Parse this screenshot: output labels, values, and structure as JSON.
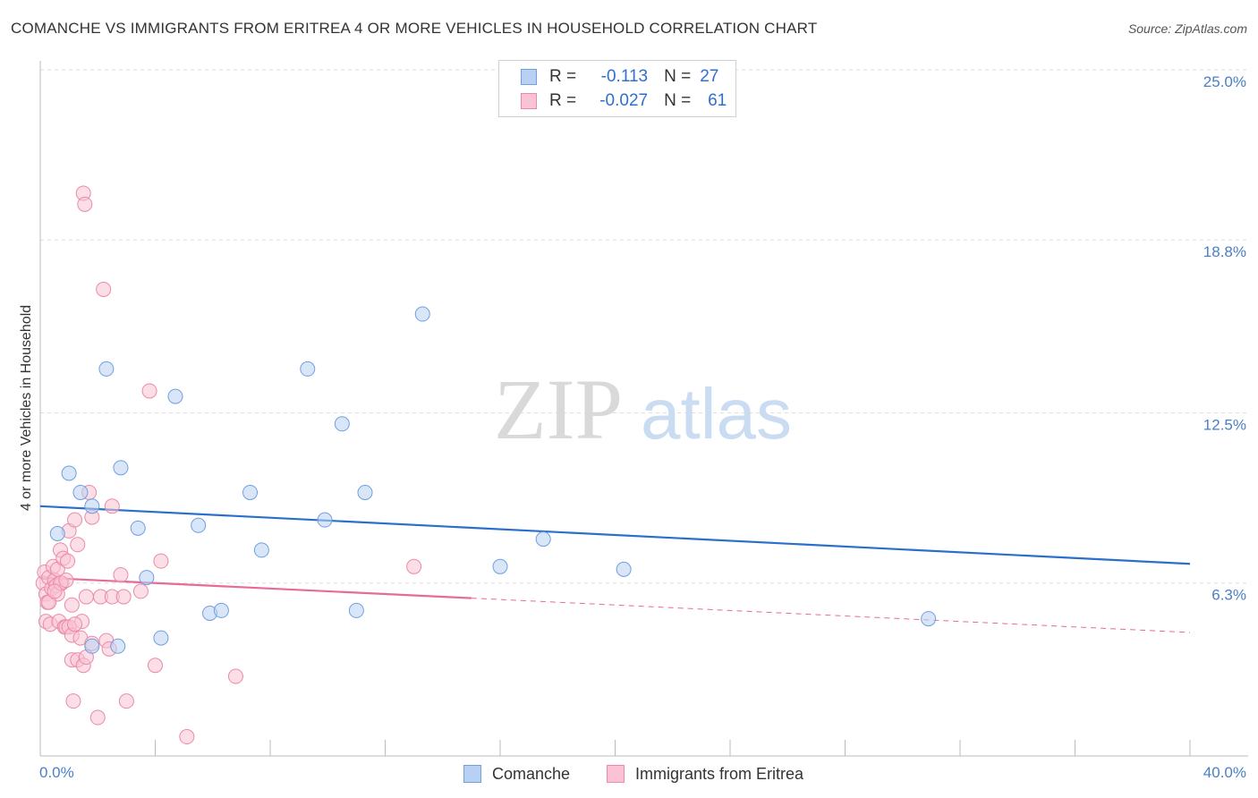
{
  "title": "COMANCHE VS IMMIGRANTS FROM ERITREA 4 OR MORE VEHICLES IN HOUSEHOLD CORRELATION CHART",
  "source": "Source: ZipAtlas.com",
  "watermark": {
    "zip": "ZIP",
    "atlas": "atlas"
  },
  "legend": {
    "rows": [
      {
        "r_label": "R =",
        "r_value": "-0.113",
        "n_label": "N =",
        "n_value": "27"
      },
      {
        "r_label": "R =",
        "r_value": "-0.027",
        "n_label": "N =",
        "n_value": "61"
      }
    ]
  },
  "bottom_legend": {
    "comanche": "Comanche",
    "eritrea": "Immigrants from Eritrea"
  },
  "colors": {
    "comanche_fill": "#b8d1f3",
    "comanche_stroke": "#6e9fe0",
    "comanche_line": "#2a6fca",
    "eritrea_fill": "#f9c3d4",
    "eritrea_stroke": "#ea8aa8",
    "eritrea_line": "#e8699a",
    "tick_text": "#4a7fc8",
    "grid": "#dddddd"
  },
  "chart_data": {
    "type": "scatter",
    "title": "COMANCHE VS IMMIGRANTS FROM ERITREA 4 OR MORE VEHICLES IN HOUSEHOLD CORRELATION CHART",
    "xlabel": "",
    "ylabel": "4 or more Vehicles in Household",
    "xlim": [
      0,
      40
    ],
    "ylim": [
      0,
      25
    ],
    "x_tick_labels": [
      "0.0%",
      "40.0%"
    ],
    "y_ticks": [
      6.3,
      12.5,
      18.8,
      25.0
    ],
    "y_tick_labels": [
      "6.3%",
      "12.5%",
      "18.8%",
      "25.0%"
    ],
    "grid": true,
    "legend_position": "top-center",
    "series": [
      {
        "name": "Comanche",
        "R": -0.113,
        "N": 27,
        "trend": {
          "x": [
            0.0,
            40.0
          ],
          "y": [
            9.1,
            7.0
          ]
        },
        "points": [
          {
            "x": 0.6,
            "y": 8.1
          },
          {
            "x": 1.0,
            "y": 10.3
          },
          {
            "x": 1.4,
            "y": 9.6
          },
          {
            "x": 1.8,
            "y": 9.1
          },
          {
            "x": 2.3,
            "y": 14.1
          },
          {
            "x": 2.8,
            "y": 10.5
          },
          {
            "x": 3.4,
            "y": 8.3
          },
          {
            "x": 3.7,
            "y": 6.5
          },
          {
            "x": 4.2,
            "y": 4.3
          },
          {
            "x": 4.7,
            "y": 13.1
          },
          {
            "x": 5.5,
            "y": 8.4
          },
          {
            "x": 5.9,
            "y": 5.2
          },
          {
            "x": 6.3,
            "y": 5.3
          },
          {
            "x": 7.3,
            "y": 9.6
          },
          {
            "x": 7.7,
            "y": 7.5
          },
          {
            "x": 9.3,
            "y": 14.1
          },
          {
            "x": 9.9,
            "y": 8.6
          },
          {
            "x": 10.5,
            "y": 12.1
          },
          {
            "x": 11.0,
            "y": 5.3
          },
          {
            "x": 11.3,
            "y": 9.6
          },
          {
            "x": 13.3,
            "y": 16.1
          },
          {
            "x": 16.0,
            "y": 6.9
          },
          {
            "x": 17.5,
            "y": 7.9
          },
          {
            "x": 20.3,
            "y": 6.8
          },
          {
            "x": 30.9,
            "y": 5.0
          },
          {
            "x": 2.7,
            "y": 4.0
          },
          {
            "x": 1.8,
            "y": 4.0
          }
        ]
      },
      {
        "name": "Immigrants from Eritrea",
        "R": -0.027,
        "N": 61,
        "trend": {
          "x": [
            0.0,
            40.0
          ],
          "y": [
            6.5,
            4.5
          ],
          "solid_until": 15.0
        },
        "points": [
          {
            "x": 0.1,
            "y": 6.3
          },
          {
            "x": 0.15,
            "y": 6.7
          },
          {
            "x": 0.2,
            "y": 5.9
          },
          {
            "x": 0.2,
            "y": 4.9
          },
          {
            "x": 0.25,
            "y": 5.6
          },
          {
            "x": 0.3,
            "y": 6.5
          },
          {
            "x": 0.35,
            "y": 4.8
          },
          {
            "x": 0.4,
            "y": 6.1
          },
          {
            "x": 0.45,
            "y": 6.9
          },
          {
            "x": 0.5,
            "y": 6.4
          },
          {
            "x": 0.55,
            "y": 6.2
          },
          {
            "x": 0.6,
            "y": 5.9
          },
          {
            "x": 0.6,
            "y": 6.8
          },
          {
            "x": 0.65,
            "y": 4.9
          },
          {
            "x": 0.7,
            "y": 7.5
          },
          {
            "x": 0.75,
            "y": 6.3
          },
          {
            "x": 0.8,
            "y": 7.2
          },
          {
            "x": 0.85,
            "y": 4.7
          },
          {
            "x": 0.9,
            "y": 4.7
          },
          {
            "x": 0.95,
            "y": 7.1
          },
          {
            "x": 1.0,
            "y": 8.2
          },
          {
            "x": 1.0,
            "y": 4.7
          },
          {
            "x": 1.1,
            "y": 5.5
          },
          {
            "x": 1.1,
            "y": 4.4
          },
          {
            "x": 1.1,
            "y": 3.5
          },
          {
            "x": 1.15,
            "y": 2.0
          },
          {
            "x": 1.2,
            "y": 8.6
          },
          {
            "x": 1.3,
            "y": 7.7
          },
          {
            "x": 1.3,
            "y": 3.5
          },
          {
            "x": 1.4,
            "y": 4.3
          },
          {
            "x": 1.45,
            "y": 4.9
          },
          {
            "x": 1.5,
            "y": 3.3
          },
          {
            "x": 1.6,
            "y": 3.6
          },
          {
            "x": 1.6,
            "y": 5.8
          },
          {
            "x": 1.5,
            "y": 20.5
          },
          {
            "x": 1.55,
            "y": 20.1
          },
          {
            "x": 1.7,
            "y": 9.6
          },
          {
            "x": 1.8,
            "y": 8.7
          },
          {
            "x": 1.8,
            "y": 4.1
          },
          {
            "x": 2.0,
            "y": 1.4
          },
          {
            "x": 2.1,
            "y": 5.8
          },
          {
            "x": 2.2,
            "y": 17.0
          },
          {
            "x": 2.3,
            "y": 4.2
          },
          {
            "x": 2.4,
            "y": 3.9
          },
          {
            "x": 2.5,
            "y": 5.8
          },
          {
            "x": 2.5,
            "y": 9.1
          },
          {
            "x": 2.8,
            "y": 6.6
          },
          {
            "x": 2.9,
            "y": 5.8
          },
          {
            "x": 3.0,
            "y": 2.0
          },
          {
            "x": 3.5,
            "y": 6.0
          },
          {
            "x": 3.8,
            "y": 13.3
          },
          {
            "x": 4.0,
            "y": 3.3
          },
          {
            "x": 4.2,
            "y": 7.1
          },
          {
            "x": 5.1,
            "y": 0.7
          },
          {
            "x": 6.8,
            "y": 2.9
          },
          {
            "x": 13.0,
            "y": 6.9
          },
          {
            "x": 0.3,
            "y": 5.6
          },
          {
            "x": 0.7,
            "y": 6.3
          },
          {
            "x": 0.5,
            "y": 6.0
          },
          {
            "x": 0.9,
            "y": 6.4
          },
          {
            "x": 1.2,
            "y": 4.8
          }
        ]
      }
    ]
  }
}
